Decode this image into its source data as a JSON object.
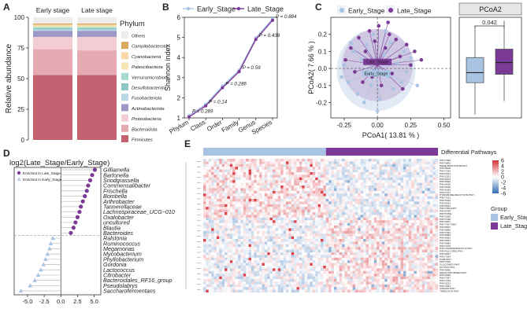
{
  "figure": {
    "panels": [
      "A",
      "B",
      "C",
      "D",
      "E"
    ]
  },
  "chart_data": [
    {
      "panel": "A",
      "type": "bar",
      "stacked": true,
      "title": "",
      "ylabel": "Relative abundance",
      "categories": [
        "Early stage",
        "Late stage"
      ],
      "ylim": [
        0,
        100
      ],
      "yticks": [
        0,
        25,
        50,
        75,
        100
      ],
      "legend_title": "Phylum",
      "series": [
        {
          "name": "Firmicutes",
          "color": "#c56272",
          "values": [
            53,
            53
          ]
        },
        {
          "name": "Bacteroidota",
          "color": "#e6aab2",
          "values": [
            21,
            20
          ]
        },
        {
          "name": "Proteobacteria",
          "color": "#f3ccd4",
          "values": [
            10,
            11
          ]
        },
        {
          "name": "Actinobacteriota",
          "color": "#9e98c8",
          "values": [
            5,
            5
          ]
        },
        {
          "name": "Fusobacteriota",
          "color": "#b8d8e6",
          "values": [
            1,
            1
          ]
        },
        {
          "name": "Desulfobacterota",
          "color": "#8cc7c5",
          "values": [
            1,
            1
          ]
        },
        {
          "name": "Verrucomicrobiota",
          "color": "#a6d9cf",
          "values": [
            1,
            1
          ]
        },
        {
          "name": "Patescibacteria",
          "color": "#f6e6b6",
          "values": [
            1,
            1
          ]
        },
        {
          "name": "Cyanobacteria",
          "color": "#f8d9a6",
          "values": [
            1,
            1
          ]
        },
        {
          "name": "Campilobacterota",
          "color": "#d9a75e",
          "values": [
            1,
            1
          ]
        },
        {
          "name": "Others",
          "color": "#ececec",
          "values": [
            5,
            5
          ]
        }
      ]
    },
    {
      "panel": "B",
      "type": "line",
      "ylabel": "Shannon index",
      "categories": [
        "Phylum",
        "Class",
        "Order",
        "Family",
        "Genus",
        "Species"
      ],
      "ylim": [
        1,
        6
      ],
      "yticks": [
        1,
        2,
        3,
        4,
        5,
        6
      ],
      "series": [
        {
          "name": "Early_Stage",
          "color": "#a9c4e2",
          "values": [
            1.12,
            1.68,
            2.58,
            3.38,
            4.98,
            5.92
          ]
        },
        {
          "name": "Late_Stage",
          "color": "#7b3a96",
          "values": [
            1.05,
            1.6,
            2.5,
            3.3,
            4.9,
            5.85
          ]
        }
      ],
      "annotations": [
        "P = 0.289",
        "P = 0.14",
        "P = 0.286",
        "P = 0.59",
        "P = 0.439",
        "P = 0.884"
      ]
    },
    {
      "panel": "C",
      "type": "scatter",
      "xlabel": "PCoA1( 13.81 % )",
      "ylabel": "PCoA2( 7.66 % )",
      "xlim": [
        -0.35,
        0.55
      ],
      "ylim": [
        -0.29,
        0.3
      ],
      "xticks": [
        -0.25,
        0.0,
        0.25,
        0.5
      ],
      "yticks": [
        -0.2,
        -0.1,
        0.0,
        0.1,
        0.2
      ],
      "centroids": [
        {
          "name": "Early_Stage",
          "color": "#a9c4e2",
          "x": -0.01,
          "y": -0.01
        },
        {
          "name": "Late_Stage",
          "color": "#7b3a96",
          "x": 0.0,
          "y": 0.02
        }
      ],
      "series": [
        {
          "name": "Early_Stage",
          "color": "#a9c4e2",
          "points": [
            [
              -0.25,
              0.02
            ],
            [
              -0.22,
              -0.08
            ],
            [
              -0.18,
              0.1
            ],
            [
              -0.15,
              -0.15
            ],
            [
              -0.12,
              0.05
            ],
            [
              -0.1,
              -0.2
            ],
            [
              -0.08,
              0.14
            ],
            [
              -0.05,
              -0.1
            ],
            [
              -0.03,
              0.2
            ],
            [
              0.02,
              -0.18
            ],
            [
              0.05,
              0.08
            ],
            [
              0.08,
              -0.05
            ],
            [
              0.1,
              0.15
            ],
            [
              0.12,
              -0.12
            ],
            [
              0.15,
              0.03
            ],
            [
              0.18,
              -0.08
            ],
            [
              0.2,
              0.1
            ],
            [
              0.22,
              -0.02
            ],
            [
              0.25,
              0.06
            ],
            [
              -0.2,
              0.15
            ],
            [
              0.3,
              -0.1
            ],
            [
              -0.27,
              -0.05
            ],
            [
              0.0,
              -0.25
            ],
            [
              0.06,
              0.22
            ]
          ]
        },
        {
          "name": "Late_Stage",
          "color": "#7b3a96",
          "points": [
            [
              -0.2,
              0.12
            ],
            [
              -0.17,
              -0.02
            ],
            [
              -0.14,
              0.18
            ],
            [
              -0.11,
              -0.08
            ],
            [
              -0.09,
              0.1
            ],
            [
              -0.06,
              0.22
            ],
            [
              -0.04,
              -0.05
            ],
            [
              -0.02,
              0.16
            ],
            [
              0.01,
              0.25
            ],
            [
              0.03,
              -0.1
            ],
            [
              0.06,
              0.12
            ],
            [
              0.09,
              0.2
            ],
            [
              0.11,
              -0.03
            ],
            [
              0.14,
              0.17
            ],
            [
              0.17,
              0.07
            ],
            [
              0.19,
              -0.12
            ],
            [
              0.22,
              0.14
            ],
            [
              0.25,
              0.02
            ],
            [
              0.28,
              0.1
            ],
            [
              -0.24,
              0.05
            ],
            [
              0.33,
              0.05
            ],
            [
              0.08,
              0.27
            ]
          ]
        }
      ]
    },
    {
      "panel": "C-box",
      "type": "box",
      "title": "PCoA2",
      "categories": [
        "Early_Stage",
        "Late_Stage"
      ],
      "ylim": [
        -0.3,
        0.3
      ],
      "annotation": "0.042",
      "boxes": [
        {
          "name": "Early_Stage",
          "color": "#a9c4e2",
          "whisker_low": -0.28,
          "q1": -0.09,
          "median": -0.03,
          "q3": 0.06,
          "whisker_high": 0.25
        },
        {
          "name": "Late_Stage",
          "color": "#7b3a96",
          "whisker_low": -0.2,
          "q1": -0.04,
          "median": 0.03,
          "q3": 0.11,
          "whisker_high": 0.28
        }
      ]
    },
    {
      "panel": "D",
      "type": "bar",
      "orientation": "horizontal",
      "title": "log2(Late_Stage/Early_Stage)",
      "xlim": [
        -7,
        6
      ],
      "xticks": [
        -5.0,
        -2.5,
        0.0,
        2.5,
        5.0
      ],
      "legend": [
        {
          "name": "Enriched in Late_Stage",
          "color": "#7b3a96"
        },
        {
          "name": "Enriched in Early_Stage",
          "color": "#a9c4e2"
        }
      ],
      "categories": [
        "Gilliamella",
        "Bartonella",
        "Snodgrassella",
        "Commensalibacter",
        "Frischella",
        "Bombella",
        "Arthrobacter",
        "Tannerellaceae",
        "Lachnospiraceae_UCG−010",
        "Oxalobacter",
        "uncultured",
        "Blautia",
        "Bacteroides",
        "Ralstonia",
        "Ruminococcus",
        "Megamonas",
        "Mycobacterium",
        "Phyllobacterium",
        "Gordonia",
        "Lactococcus",
        "Citrobacter",
        "Bacteroidales_RF16_group",
        "Pseudolabrys",
        "Saccharofermentans"
      ],
      "values": [
        5.1,
        4.7,
        4.4,
        4.1,
        3.9,
        3.6,
        3.3,
        3.0,
        2.8,
        2.5,
        2.2,
        1.9,
        1.5,
        -1.2,
        -1.5,
        -1.7,
        -2.0,
        -2.3,
        -2.6,
        -3.0,
        -3.4,
        -3.9,
        -4.6,
        -6.0
      ]
    },
    {
      "panel": "E",
      "type": "heatmap",
      "title": "Differential Pathways",
      "color_scale": {
        "min": -6,
        "max": 6,
        "ticks": [
          6,
          4,
          2,
          0,
          -2,
          -4,
          -6
        ],
        "low_color": "#2f6db5",
        "mid_color": "#ffffff",
        "high_color": "#d6333a"
      },
      "group_legend": {
        "title": "Group",
        "items": [
          {
            "name": "Early_Stage",
            "color": "#a9c4e2"
          },
          {
            "name": "Late_Stage",
            "color": "#7b3a96"
          }
        ]
      },
      "columns": {
        "Early_Stage": 46,
        "Late_Stage": 42
      },
      "rows": [
        "PWY7392",
        "PWY6892",
        "HEME BIOSYNTHESIS II",
        "PWY5918",
        "PWY7242",
        "PWY5101",
        "PWY2201",
        "PWY5103",
        "PWY6628",
        "PWY6630",
        "PWY6435",
        "PWY6339",
        "PWY7377",
        "PYRIMIDINE-DEOXYSYN.PWY",
        "PWY7013",
        "PWY5182",
        "PWY5100",
        "PWY5181",
        "PWY7009.PWY",
        "PWY5789",
        "PWY5789L",
        "PWY5265",
        "PWY7038",
        "PWY5207",
        "PWY7037.PWY",
        "PWY5507",
        "PWY5896",
        "PWY7094",
        "PWY5860",
        "PWY6662",
        "PWY5837",
        "PWY5869",
        "PWY7219",
        "POLYISOPRENOIDSYN.PWY",
        "PWY4221.CRID.PWY",
        "PWY6467",
        "PWY7234",
        "P108.PWY",
        "PWY7456",
        "GLUCONEO.PWY",
        "GLYCOLYSIS",
        "PWY6969",
        "DENOVOPURINE2.PWY",
        "PWY3065",
        "PWY7357",
        "PWY7210",
        "PWY3221",
        "PWY4361",
        "ASPASN.PWY",
        "THREOSYN.PWY"
      ]
    }
  ]
}
